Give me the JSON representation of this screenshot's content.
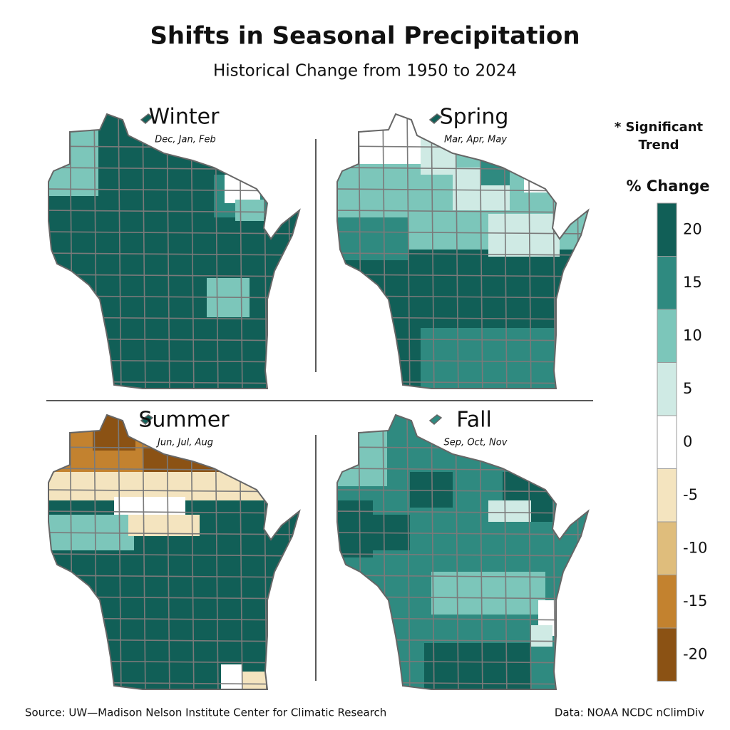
{
  "title": "Shifts in Seasonal Precipitation",
  "subtitle": "Historical Change from 1950 to 2024",
  "maps": [
    {
      "season": "Winter",
      "months": "Dec, Jan, Feb"
    },
    {
      "season": "Spring",
      "months": "Mar, Apr, May"
    },
    {
      "season": "Summer",
      "months": "Jun, Jul, Aug"
    },
    {
      "season": "Fall",
      "months": "Sep, Oct, Nov"
    }
  ],
  "legend": {
    "note": "* Significant",
    "note2": "Trend",
    "title": "% Change",
    "ticks": [
      20,
      15,
      10,
      5,
      0,
      -5,
      -10,
      -15,
      -20
    ],
    "colors": [
      "#115f57",
      "#2f8a80",
      "#7cc6ba",
      "#cfeae4",
      "#ffffff",
      "#f4e4bf",
      "#dfbd7c",
      "#c3822f",
      "#8b5214"
    ]
  },
  "footer": {
    "source": "Source: UW—Madison Nelson Institute Center for Climatic Research",
    "data": "Data: NOAA NCDC nClimDiv"
  }
}
